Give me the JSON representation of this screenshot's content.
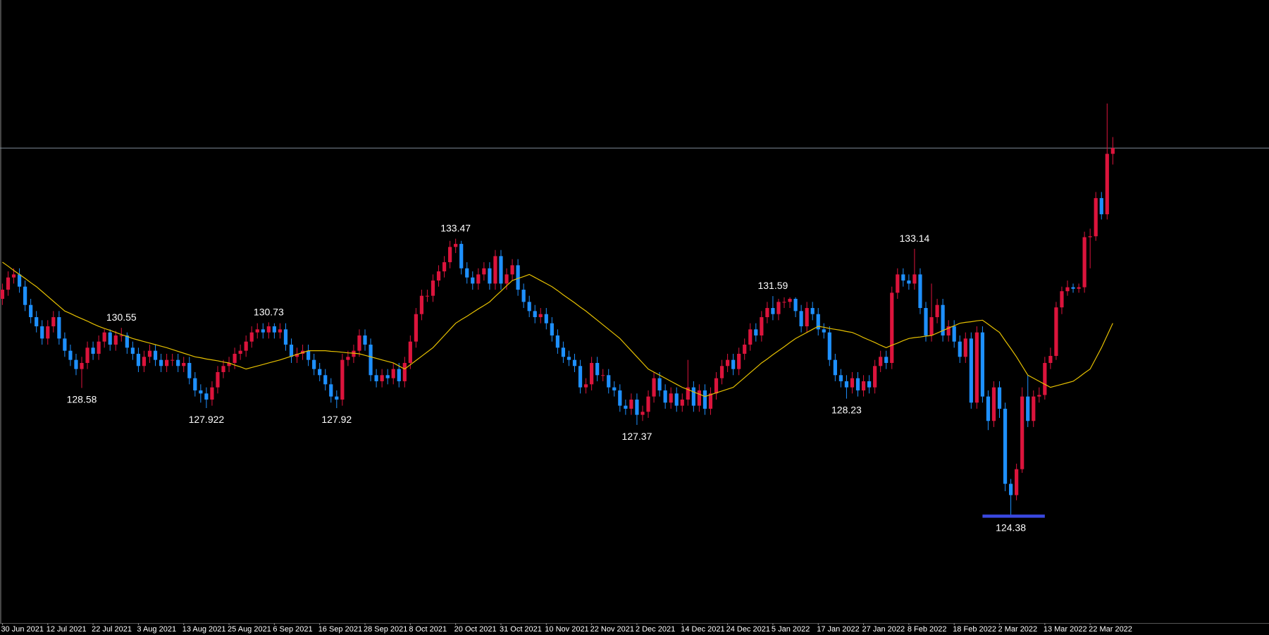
{
  "chart_data": {
    "type": "candlestick",
    "up_color": "#dc143c",
    "down_color": "#1e90ff",
    "ylim": [
      120.88,
      141.29
    ],
    "categories": [
      "30 Jun 2021",
      null,
      null,
      null,
      null,
      null,
      null,
      null,
      "12 Jul 2021",
      null,
      null,
      null,
      null,
      null,
      null,
      null,
      "22 Jul 2021",
      null,
      null,
      null,
      null,
      null,
      null,
      null,
      "3 Aug 2021",
      null,
      null,
      null,
      null,
      null,
      null,
      null,
      "13 Aug 2021",
      null,
      null,
      null,
      null,
      null,
      null,
      null,
      "25 Aug 2021",
      null,
      null,
      null,
      null,
      null,
      null,
      null,
      "6 Sep 2021",
      null,
      null,
      null,
      null,
      null,
      null,
      null,
      "16 Sep 2021",
      null,
      null,
      null,
      null,
      null,
      null,
      null,
      "28 Sep 2021",
      null,
      null,
      null,
      null,
      null,
      null,
      null,
      "8 Oct 2021",
      null,
      null,
      null,
      null,
      null,
      null,
      null,
      "20 Oct 2021",
      null,
      null,
      null,
      null,
      null,
      null,
      null,
      "31 Oct 2021",
      null,
      null,
      null,
      null,
      null,
      null,
      null,
      "10 Nov 2021",
      null,
      null,
      null,
      null,
      null,
      null,
      null,
      "22 Nov 2021",
      null,
      null,
      null,
      null,
      null,
      null,
      null,
      "2 Dec 2021",
      null,
      null,
      null,
      null,
      null,
      null,
      null,
      "14 Dec 2021",
      null,
      null,
      null,
      null,
      null,
      null,
      null,
      "24 Dec 2021",
      null,
      null,
      null,
      null,
      null,
      null,
      null,
      "5 Jan 2022",
      null,
      null,
      null,
      null,
      null,
      null,
      null,
      "17 Jan 2022",
      null,
      null,
      null,
      null,
      null,
      null,
      null,
      "27 Jan 2022",
      null,
      null,
      null,
      null,
      null,
      null,
      null,
      "8 Feb 2022",
      null,
      null,
      null,
      null,
      null,
      null,
      null,
      "18 Feb 2022",
      null,
      null,
      null,
      null,
      null,
      null,
      null,
      "2 Mar 2022",
      null,
      null,
      null,
      null,
      null,
      null,
      null,
      "13 Mar 2022",
      null,
      null,
      null,
      null,
      null,
      null,
      null,
      "22 Mar 2022",
      null,
      null,
      null,
      null
    ],
    "open": [
      131.5,
      131.8,
      132.2,
      132.3,
      131.9,
      131.3,
      130.9,
      130.6,
      130.2,
      130.6,
      130.9,
      130.2,
      129.8,
      129.5,
      129.2,
      129.4,
      129.9,
      129.7,
      130.1,
      130.4,
      130.0,
      130.3,
      130.3,
      129.9,
      129.7,
      129.3,
      129.6,
      129.8,
      129.5,
      129.3,
      129.5,
      129.5,
      129.3,
      129.4,
      128.9,
      128.5,
      128.4,
      128.2,
      128.6,
      129.1,
      129.3,
      129.4,
      129.7,
      129.8,
      130.1,
      130.4,
      130.5,
      130.4,
      130.6,
      130.4,
      130.5,
      130.0,
      129.6,
      129.7,
      129.8,
      129.5,
      129.2,
      129.0,
      128.7,
      128.3,
      128.2,
      129.5,
      129.6,
      129.8,
      130.3,
      130.0,
      129.0,
      128.8,
      129.0,
      128.9,
      129.2,
      128.8,
      129.4,
      130.1,
      131.0,
      131.6,
      131.6,
      132.1,
      132.4,
      132.7,
      133.2,
      133.3,
      132.5,
      132.2,
      132.0,
      132.3,
      132.5,
      132.0,
      132.9,
      132.0,
      132.3,
      132.6,
      131.8,
      131.4,
      131.1,
      130.9,
      131.0,
      130.7,
      130.3,
      129.9,
      129.6,
      129.5,
      129.3,
      128.6,
      128.7,
      129.4,
      129.0,
      129.0,
      128.6,
      128.5,
      128.0,
      127.9,
      128.2,
      127.7,
      127.8,
      128.3,
      128.9,
      128.5,
      128.1,
      128.4,
      128.0,
      128.2,
      128.6,
      128.0,
      128.5,
      127.9,
      128.4,
      128.9,
      129.3,
      129.5,
      129.2,
      129.7,
      130.0,
      130.5,
      130.3,
      130.9,
      131.2,
      131.0,
      131.4,
      131.4,
      131.5,
      131.1,
      130.6,
      131.2,
      131.0,
      130.5,
      130.4,
      129.5,
      129.0,
      128.8,
      128.6,
      128.9,
      128.5,
      128.8,
      128.6,
      129.3,
      129.6,
      129.4,
      131.7,
      132.3,
      132.1,
      132.0,
      132.3,
      131.2,
      130.3,
      130.9,
      131.3,
      130.3,
      130.6,
      130.1,
      129.6,
      130.2,
      128.1,
      130.4,
      128.3,
      127.5,
      128.6,
      127.9,
      125.44,
      125.07,
      125.92,
      128.3,
      127.5,
      128.3,
      128.35,
      129.4,
      129.63,
      131.22,
      131.75,
      131.88,
      131.83,
      131.88,
      133.52,
      133.55,
      134.8,
      134.27,
      136.25
    ],
    "high": [
      132.0,
      132.4,
      132.5,
      132.5,
      132.1,
      131.5,
      131.1,
      130.8,
      130.8,
      131.1,
      131.1,
      130.4,
      130.0,
      129.7,
      129.6,
      130.1,
      130.1,
      130.3,
      130.5,
      130.5,
      130.45,
      130.55,
      130.4,
      130.1,
      129.9,
      129.8,
      130.0,
      130.0,
      129.7,
      129.7,
      129.7,
      129.7,
      129.6,
      129.6,
      129.1,
      128.7,
      128.6,
      128.8,
      129.3,
      129.5,
      129.6,
      129.9,
      130.0,
      130.3,
      130.6,
      130.7,
      130.7,
      130.73,
      130.7,
      130.7,
      130.7,
      130.2,
      129.9,
      130.0,
      130.0,
      129.7,
      129.4,
      129.2,
      128.9,
      128.5,
      129.7,
      129.8,
      130.0,
      130.5,
      130.5,
      130.2,
      129.2,
      129.2,
      129.2,
      129.4,
      129.4,
      129.6,
      130.3,
      131.2,
      131.8,
      131.8,
      132.3,
      132.6,
      132.9,
      133.4,
      133.47,
      133.4,
      132.7,
      132.4,
      132.5,
      132.7,
      132.7,
      133.1,
      133.1,
      132.5,
      132.8,
      132.8,
      132.0,
      131.6,
      131.3,
      131.2,
      131.2,
      130.9,
      130.5,
      130.1,
      129.8,
      129.7,
      129.5,
      128.9,
      129.6,
      129.6,
      129.2,
      129.2,
      128.8,
      128.7,
      128.2,
      128.4,
      128.4,
      128.0,
      128.5,
      129.1,
      129.1,
      128.7,
      128.6,
      128.6,
      128.4,
      129.5,
      128.8,
      128.7,
      128.7,
      128.6,
      129.1,
      129.5,
      129.7,
      129.7,
      129.9,
      130.2,
      130.7,
      130.7,
      131.1,
      131.4,
      131.59,
      131.5,
      131.55,
      131.55,
      131.55,
      131.3,
      131.4,
      131.4,
      131.2,
      130.7,
      130.6,
      129.7,
      129.2,
      129.0,
      129.1,
      129.1,
      129.0,
      129.0,
      129.5,
      129.8,
      129.8,
      131.9,
      132.5,
      132.5,
      132.3,
      133.14,
      132.5,
      131.4,
      132.0,
      131.5,
      131.5,
      130.8,
      130.8,
      130.3,
      130.4,
      130.4,
      130.6,
      130.6,
      128.5,
      128.8,
      128.8,
      128.1,
      125.6,
      126.1,
      128.6,
      129.0,
      128.5,
      128.6,
      129.6,
      129.9,
      131.4,
      131.9,
      132.1,
      132.0,
      132.0,
      133.7,
      133.8,
      135.0,
      135.0,
      137.9,
      136.8
    ],
    "low": [
      131.3,
      131.6,
      132.0,
      131.7,
      131.1,
      130.7,
      130.4,
      130.0,
      130.0,
      130.4,
      130.0,
      129.6,
      129.3,
      129.0,
      128.58,
      129.2,
      129.5,
      129.5,
      129.9,
      129.8,
      129.8,
      130.1,
      129.7,
      129.5,
      129.1,
      129.1,
      129.4,
      129.3,
      129.1,
      129.1,
      129.3,
      129.1,
      129.1,
      128.7,
      128.3,
      128.1,
      127.922,
      128.0,
      128.4,
      128.9,
      129.1,
      129.2,
      129.5,
      129.6,
      129.9,
      130.2,
      130.2,
      130.2,
      130.2,
      130.2,
      129.8,
      129.4,
      129.4,
      129.5,
      129.3,
      129.0,
      128.8,
      128.5,
      128.1,
      127.92,
      128.0,
      129.3,
      129.4,
      129.6,
      129.8,
      128.8,
      128.6,
      128.6,
      128.7,
      128.7,
      128.6,
      128.6,
      129.2,
      129.9,
      130.8,
      131.4,
      131.4,
      131.9,
      132.2,
      132.5,
      133.0,
      132.3,
      132.0,
      131.8,
      131.8,
      132.1,
      131.8,
      131.8,
      131.8,
      131.8,
      132.1,
      131.6,
      131.2,
      130.9,
      130.7,
      130.7,
      130.5,
      130.1,
      129.7,
      129.4,
      129.3,
      129.1,
      128.4,
      128.4,
      128.5,
      128.8,
      128.8,
      128.4,
      128.3,
      127.8,
      127.7,
      127.7,
      127.37,
      127.5,
      127.6,
      128.1,
      128.3,
      127.9,
      127.9,
      127.8,
      127.8,
      128.0,
      127.8,
      127.8,
      127.7,
      127.7,
      128.2,
      128.7,
      129.1,
      129.0,
      129.0,
      129.5,
      129.8,
      130.1,
      130.1,
      130.7,
      130.8,
      130.8,
      131.2,
      131.2,
      130.9,
      130.4,
      130.4,
      130.8,
      130.3,
      130.2,
      129.3,
      128.8,
      128.6,
      128.23,
      128.4,
      128.3,
      128.3,
      128.4,
      128.4,
      129.1,
      129.2,
      129.2,
      131.5,
      131.9,
      131.8,
      131.8,
      131.0,
      130.1,
      130.1,
      130.7,
      130.1,
      130.1,
      129.9,
      129.4,
      129.4,
      127.9,
      127.9,
      128.1,
      127.2,
      127.3,
      127.6,
      125.2,
      124.38,
      124.9,
      125.8,
      127.3,
      127.3,
      128.1,
      128.2,
      129.2,
      129.5,
      131.0,
      131.6,
      131.7,
      131.7,
      131.7,
      132.5,
      133.4,
      134.1,
      134.1,
      135.9
    ],
    "close": [
      131.8,
      132.2,
      132.3,
      131.9,
      131.3,
      130.9,
      130.6,
      130.2,
      130.6,
      130.9,
      130.2,
      129.8,
      129.5,
      129.2,
      129.4,
      129.9,
      129.7,
      130.1,
      130.4,
      130.0,
      130.3,
      130.3,
      129.9,
      129.7,
      129.3,
      129.6,
      129.8,
      129.5,
      129.3,
      129.5,
      129.5,
      129.3,
      129.4,
      128.9,
      128.5,
      128.4,
      128.2,
      128.6,
      129.1,
      129.3,
      129.4,
      129.7,
      129.8,
      130.1,
      130.4,
      130.5,
      130.4,
      130.6,
      130.4,
      130.5,
      130.0,
      129.6,
      129.7,
      129.8,
      129.5,
      129.2,
      129.0,
      128.7,
      128.3,
      128.2,
      129.5,
      129.6,
      129.8,
      130.3,
      130.0,
      129.0,
      128.8,
      129.0,
      128.9,
      129.2,
      128.8,
      129.4,
      130.1,
      131.0,
      131.6,
      131.6,
      132.1,
      132.4,
      132.7,
      133.2,
      133.3,
      132.5,
      132.2,
      132.0,
      132.3,
      132.5,
      132.0,
      132.9,
      132.0,
      132.3,
      132.6,
      131.8,
      131.4,
      131.1,
      130.9,
      131.0,
      130.7,
      130.3,
      129.9,
      129.6,
      129.5,
      129.3,
      128.6,
      128.7,
      129.4,
      129.0,
      129.0,
      128.6,
      128.5,
      128.0,
      127.9,
      128.2,
      127.7,
      127.8,
      128.3,
      128.9,
      128.5,
      128.1,
      128.4,
      128.0,
      128.2,
      128.6,
      128.0,
      128.5,
      127.9,
      128.4,
      128.9,
      129.3,
      129.5,
      129.2,
      129.7,
      130.0,
      130.5,
      130.3,
      130.9,
      131.2,
      131.0,
      131.4,
      131.4,
      131.5,
      131.1,
      130.6,
      131.2,
      131.0,
      130.5,
      130.4,
      129.5,
      129.0,
      128.8,
      128.6,
      128.9,
      128.5,
      128.8,
      128.6,
      129.3,
      129.6,
      129.4,
      131.7,
      132.3,
      132.1,
      132.0,
      132.3,
      131.2,
      130.3,
      130.9,
      131.3,
      130.3,
      130.6,
      130.1,
      129.6,
      130.2,
      128.1,
      130.4,
      128.3,
      127.5,
      128.6,
      127.9,
      125.44,
      125.07,
      125.92,
      128.3,
      127.5,
      128.3,
      128.35,
      129.4,
      129.63,
      131.22,
      131.75,
      131.88,
      131.83,
      131.88,
      133.52,
      133.55,
      134.8,
      134.27,
      136.25,
      136.44
    ],
    "ma": {
      "color": "#e6c000",
      "values": [
        132.7,
        132.57,
        132.43,
        132.3,
        132.17,
        132.03,
        131.9,
        131.74,
        131.58,
        131.42,
        131.26,
        131.1,
        131.02,
        130.93,
        130.85,
        130.77,
        130.68,
        130.6,
        130.53,
        130.47,
        130.4,
        130.33,
        130.27,
        130.2,
        130.15,
        130.1,
        130.05,
        130.0,
        129.95,
        129.9,
        129.84,
        129.78,
        129.72,
        129.66,
        129.6,
        129.57,
        129.53,
        129.5,
        129.47,
        129.43,
        129.4,
        129.33,
        129.27,
        129.2,
        129.25,
        129.3,
        129.35,
        129.4,
        129.45,
        129.5,
        129.56,
        129.62,
        129.68,
        129.74,
        129.8,
        129.8,
        129.8,
        129.8,
        129.78,
        129.77,
        129.75,
        129.73,
        129.72,
        129.7,
        129.65,
        129.6,
        129.55,
        129.5,
        129.45,
        129.4,
        129.3,
        129.2,
        129.34,
        129.48,
        129.62,
        129.76,
        129.9,
        130.1,
        130.3,
        130.5,
        130.7,
        130.82,
        130.93,
        131.05,
        131.17,
        131.28,
        131.4,
        131.58,
        131.75,
        131.93,
        132.1,
        132.17,
        132.23,
        132.3,
        132.2,
        132.1,
        132.0,
        131.9,
        131.77,
        131.63,
        131.5,
        131.37,
        131.23,
        131.1,
        130.95,
        130.8,
        130.65,
        130.5,
        130.35,
        130.2,
        130.0,
        129.8,
        129.6,
        129.4,
        129.2,
        129.1,
        129.0,
        128.9,
        128.8,
        128.7,
        128.6,
        128.53,
        128.45,
        128.38,
        128.3,
        128.36,
        128.42,
        128.48,
        128.54,
        128.6,
        128.76,
        128.92,
        129.08,
        129.24,
        129.4,
        129.53,
        129.67,
        129.8,
        129.93,
        130.07,
        130.2,
        130.3,
        130.4,
        130.5,
        130.6,
        130.57,
        130.53,
        130.5,
        130.47,
        130.43,
        130.4,
        130.32,
        130.23,
        130.15,
        130.07,
        129.98,
        129.9,
        129.98,
        130.05,
        130.13,
        130.2,
        130.23,
        130.25,
        130.28,
        130.3,
        130.38,
        130.46,
        130.54,
        130.62,
        130.7,
        130.73,
        130.75,
        130.78,
        130.8,
        130.67,
        130.53,
        130.4,
        130.13,
        129.87,
        129.6,
        129.3,
        129.0,
        128.9,
        128.8,
        128.7,
        128.6,
        128.65,
        128.7,
        128.75,
        128.8,
        128.93,
        129.07,
        129.2,
        129.55,
        129.9,
        130.3,
        130.7
      ]
    },
    "price_line": {
      "value": 136.44,
      "color": "#7f8c99"
    },
    "support_line": {
      "value": 124.38,
      "start": 173,
      "end": 184,
      "color": "#3a48e0"
    },
    "annotations": [
      {
        "label": "128.58",
        "candle": 14,
        "at": "low"
      },
      {
        "label": "130.55",
        "candle": 21,
        "at": "high"
      },
      {
        "label": "127.922",
        "candle": 36,
        "at": "low"
      },
      {
        "label": "130.73",
        "candle": 47,
        "at": "high"
      },
      {
        "label": "127.92",
        "candle": 59,
        "at": "low"
      },
      {
        "label": "133.47",
        "candle": 80,
        "at": "high"
      },
      {
        "label": "127.37",
        "candle": 112,
        "at": "low"
      },
      {
        "label": "131.59",
        "candle": 136,
        "at": "high"
      },
      {
        "label": "128.23",
        "candle": 149,
        "at": "low"
      },
      {
        "label": "133.14",
        "candle": 161,
        "at": "high"
      },
      {
        "label": "124.38",
        "candle": 178,
        "at": "low"
      }
    ]
  }
}
